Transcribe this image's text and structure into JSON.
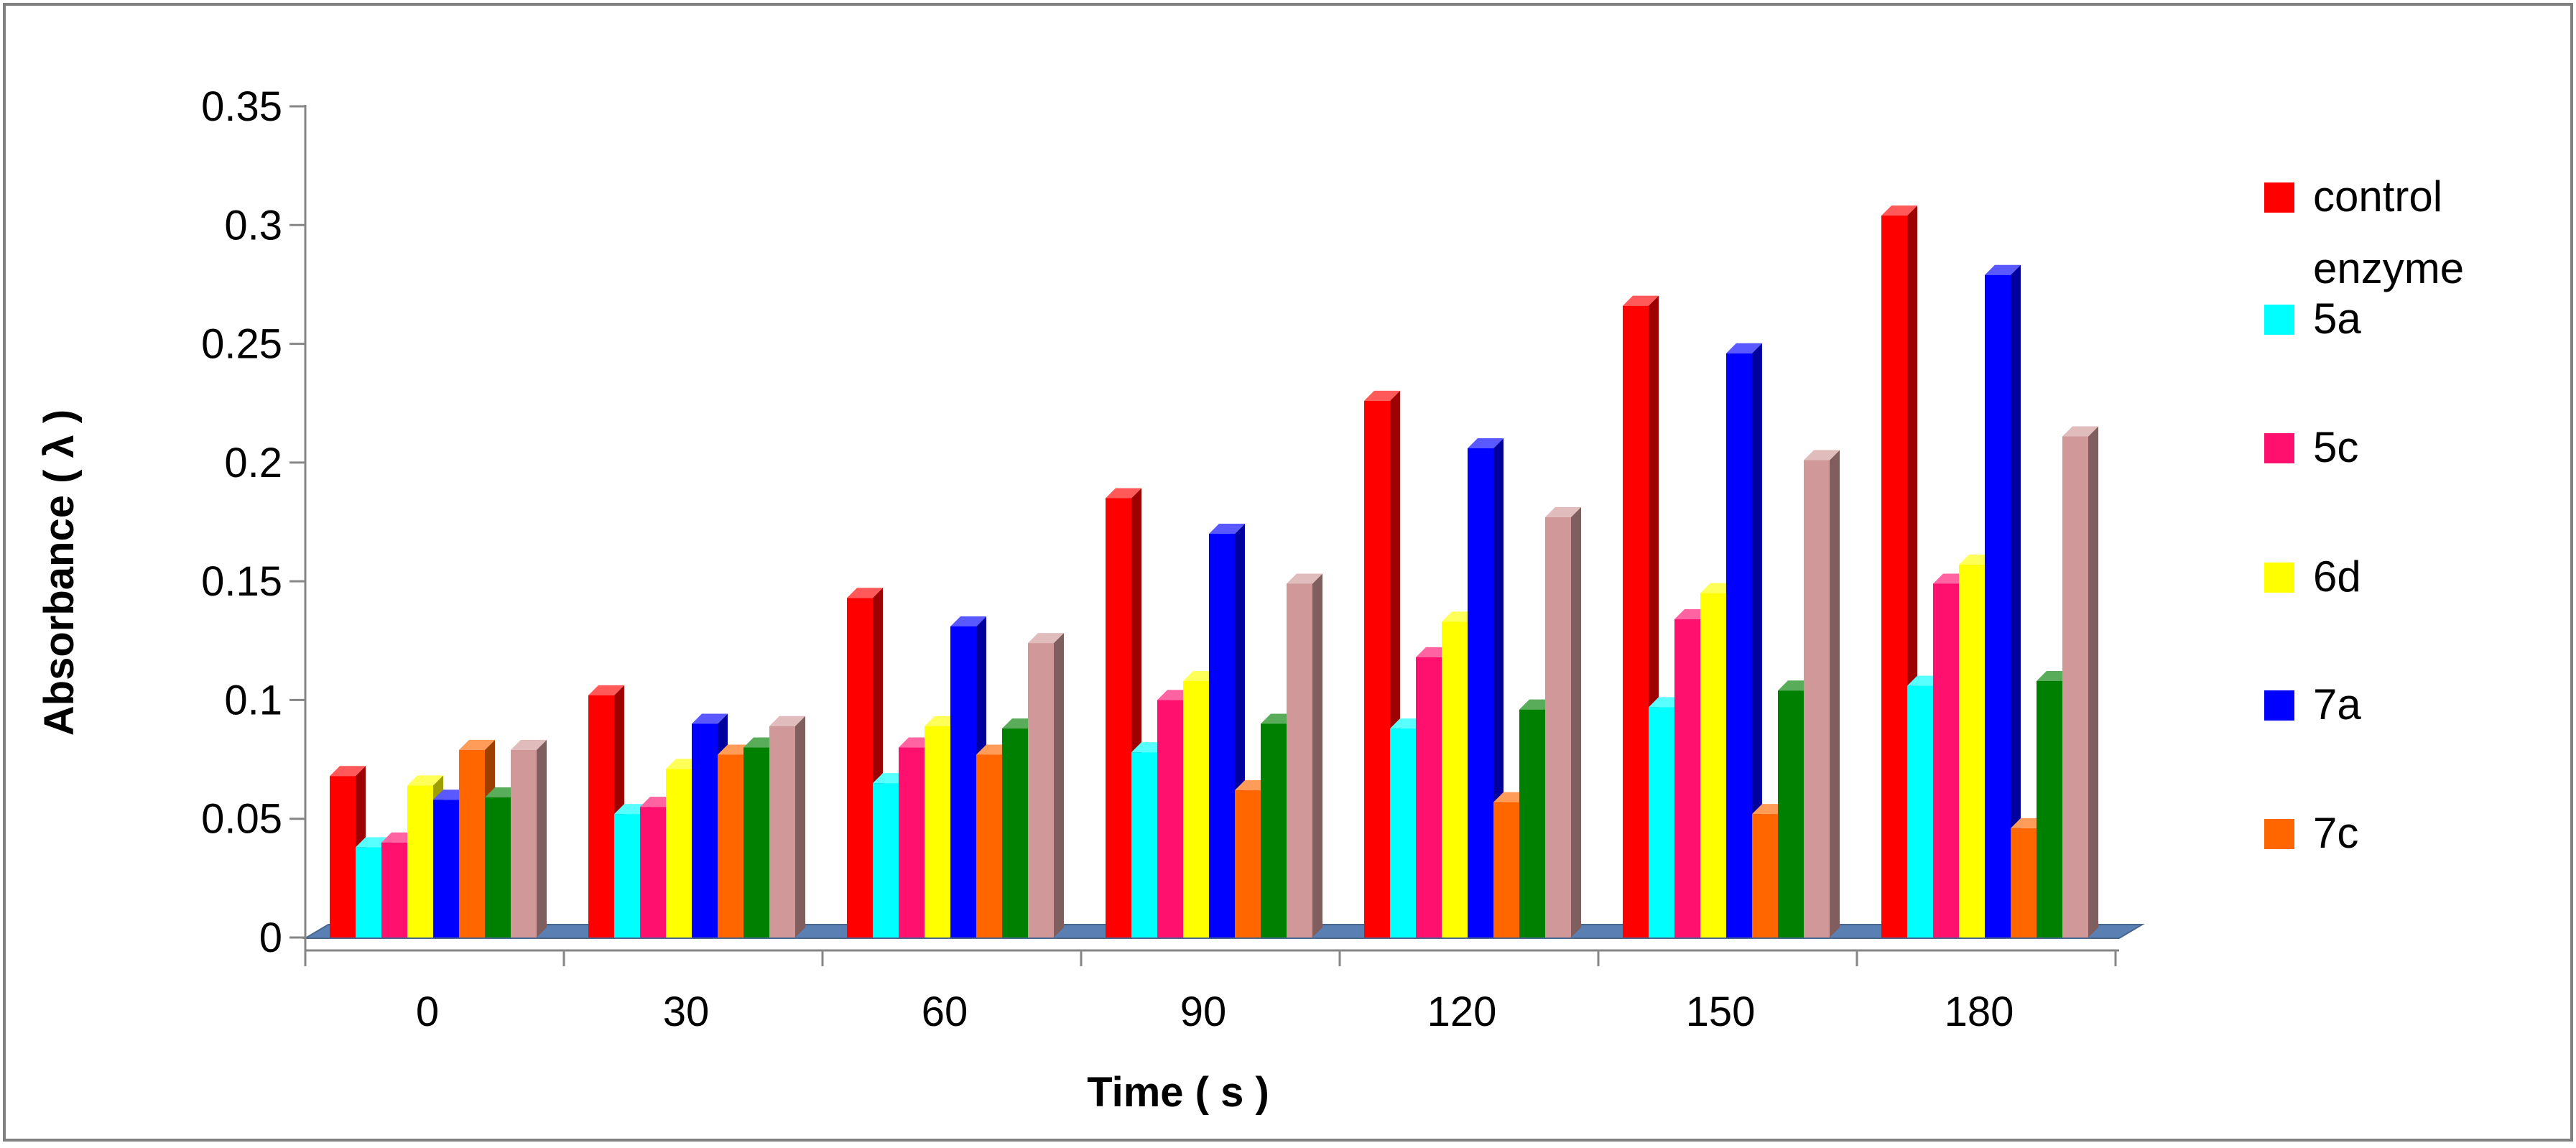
{
  "chart_data": {
    "type": "bar",
    "style": "3d-clustered-column",
    "title": "",
    "xlabel": "Time  ( s )",
    "ylabel": "Absorbance  ( λ )",
    "categories": [
      "0",
      "30",
      "60",
      "90",
      "120",
      "150",
      "180"
    ],
    "ylim": [
      0,
      0.35
    ],
    "yticks": [
      "0",
      "0.05",
      "0.1",
      "0.15",
      "0.2",
      "0.25",
      "0.3",
      "0.35"
    ],
    "ytick_values": [
      0,
      0.05,
      0.1,
      0.15,
      0.2,
      0.25,
      0.3,
      0.35
    ],
    "grid": false,
    "legend_position": "right",
    "series": [
      {
        "name": "control enzyme",
        "color": "#ff0000",
        "values": [
          0.068,
          0.102,
          0.143,
          0.185,
          0.226,
          0.266,
          0.304
        ]
      },
      {
        "name": "5a",
        "color": "#00ffff",
        "values": [
          0.038,
          0.052,
          0.065,
          0.078,
          0.088,
          0.097,
          0.106
        ]
      },
      {
        "name": "5c",
        "color": "#ff0f6e",
        "values": [
          0.04,
          0.055,
          0.08,
          0.1,
          0.118,
          0.134,
          0.149
        ]
      },
      {
        "name": "6d",
        "color": "#ffff00",
        "values": [
          0.064,
          0.071,
          0.089,
          0.108,
          0.133,
          0.145,
          0.157
        ]
      },
      {
        "name": "7a",
        "color": "#0000ff",
        "values": [
          0.058,
          0.09,
          0.131,
          0.17,
          0.206,
          0.246,
          0.279
        ]
      },
      {
        "name": "7c",
        "color": "#ff6600",
        "values": [
          0.079,
          0.077,
          0.077,
          0.062,
          0.057,
          0.052,
          0.046
        ]
      },
      {
        "name": "",
        "color": "#008000",
        "values": [
          0.059,
          0.08,
          0.088,
          0.09,
          0.096,
          0.104,
          0.108
        ]
      },
      {
        "name": "",
        "color": "#d09898",
        "values": [
          0.079,
          0.089,
          0.124,
          0.149,
          0.177,
          0.201,
          0.211
        ]
      }
    ]
  }
}
